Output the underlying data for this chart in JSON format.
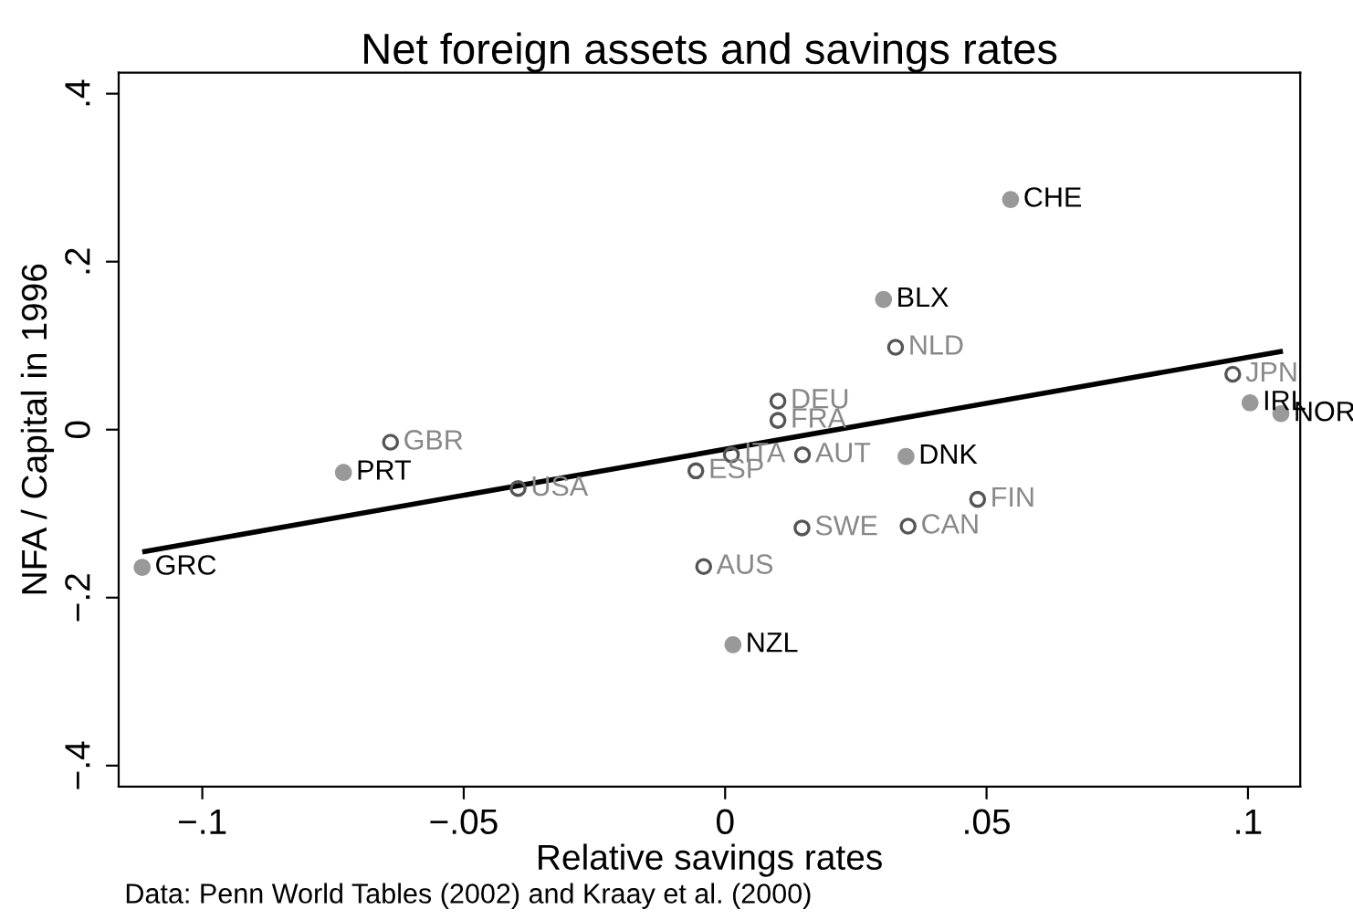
{
  "chart_data": {
    "type": "scatter",
    "title": "Net foreign assets and savings rates",
    "xlabel": "Relative savings rates",
    "ylabel": "NFA / Capital in 1996",
    "annotations": [
      "Data: Penn World Tables (2002) and Kraay et al. (2000)"
    ],
    "xlim": [
      -0.116,
      0.11
    ],
    "ylim": [
      -0.425,
      0.425
    ],
    "xticks": [
      {
        "value": -0.1,
        "label": "−.1"
      },
      {
        "value": -0.05,
        "label": "−.05"
      },
      0,
      {
        "value": 0.05,
        "label": ".05"
      },
      {
        "value": 0.1,
        "label": ".1"
      }
    ],
    "yticks": [
      {
        "value": -0.4,
        "label": "−.4"
      },
      {
        "value": -0.2,
        "label": "−.2"
      },
      0,
      {
        "value": 0.2,
        "label": ".2"
      },
      {
        "value": 0.4,
        "label": ".4"
      }
    ],
    "grid": false,
    "legend": false,
    "marker": "circle",
    "series": [
      {
        "color": "#999999",
        "x": [
          0.0546,
          0.0303,
          0.0346,
          0.1004,
          0.1063,
          -0.073,
          -0.1115,
          0.0015
        ],
        "values": [
          0.274,
          0.155,
          -0.032,
          0.032,
          0.019,
          -0.051,
          -0.164,
          -0.256
        ],
        "value_labels": [
          "CHE",
          "BLX",
          "DNK",
          "IRL",
          "NOR",
          "PRT",
          "GRC",
          "NZL"
        ]
      },
      {
        "color": "#555555",
        "marker": "circle-open",
        "x": [
          0.0326,
          0.0971,
          0.0101,
          0.0101,
          -0.064,
          0.0012,
          0.0148,
          -0.0056,
          -0.0396,
          0.0483,
          0.0147,
          0.035,
          -0.0041
        ],
        "values": [
          0.098,
          0.066,
          0.034,
          0.011,
          -0.015,
          -0.03,
          -0.03,
          -0.049,
          -0.07,
          -0.083,
          -0.117,
          -0.115,
          -0.163
        ],
        "value_labels": [
          "NLD",
          "JPN",
          "DEU",
          "FRA",
          "GBR",
          "ITA",
          "AUT",
          "ESP",
          "USA",
          "FIN",
          "SWE",
          "CAN",
          "AUS"
        ]
      },
      {
        "type": "line",
        "color": "#000000",
        "marker": "none",
        "x": [
          -0.111,
          0.1062
        ],
        "values": [
          -0.145,
          0.093
        ]
      }
    ]
  }
}
